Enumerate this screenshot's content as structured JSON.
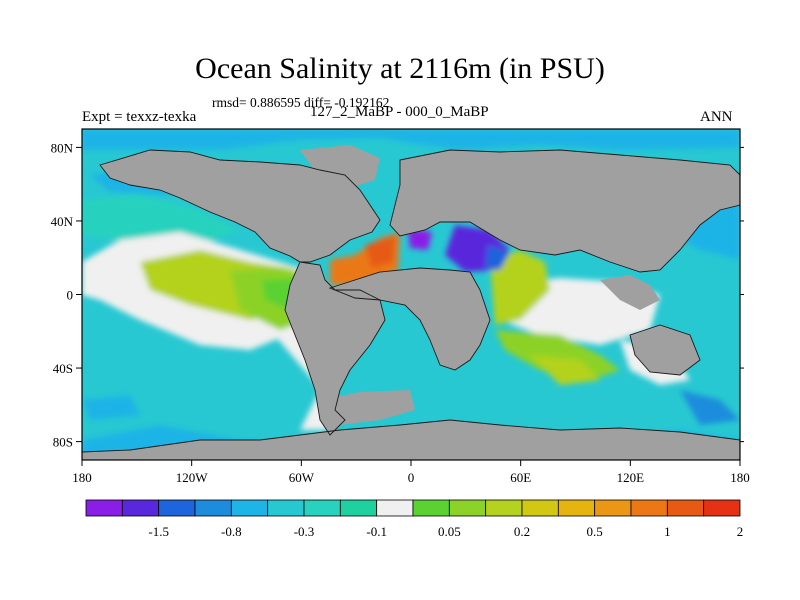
{
  "header": {
    "title": "Ocean Salinity at 2116m (in PSU)",
    "stats": "rmsd= 0.886595 diff= -0.192162",
    "expt": "Expt = texxz-texka",
    "subtitle": "127_2_MaBP - 000_0_MaBP",
    "season": "ANN"
  },
  "axes": {
    "lon_labels": [
      "180",
      "120W",
      "60W",
      "0",
      "60E",
      "120E",
      "180"
    ],
    "lat_labels": [
      "80N",
      "40N",
      "0",
      "40S",
      "80S"
    ],
    "lon_values": [
      -180,
      -120,
      -60,
      0,
      60,
      120,
      180
    ],
    "lat_values": [
      80,
      40,
      0,
      -40,
      -80
    ],
    "lon_range": [
      -180,
      180
    ],
    "lat_range": [
      -90,
      90
    ]
  },
  "colorbar": {
    "colors": [
      "#8b1ee6",
      "#5a28dc",
      "#1e64dc",
      "#1e8cdc",
      "#1eb4e6",
      "#28c8d2",
      "#28d2be",
      "#1ed2a0",
      "#f0f0f0",
      "#5ad232",
      "#8cd228",
      "#b4d21e",
      "#d2c814",
      "#e6b40f",
      "#eb9614",
      "#eb7814",
      "#e65a14",
      "#e63214"
    ],
    "tick_labels": [
      "-1.5",
      "-0.8",
      "-0.3",
      "-0.1",
      "0.05",
      "0.2",
      "0.5",
      "1",
      "2"
    ]
  },
  "legend_colors": {
    "land": "#a0a0a0",
    "near_zero": "#f0f0f0"
  }
}
